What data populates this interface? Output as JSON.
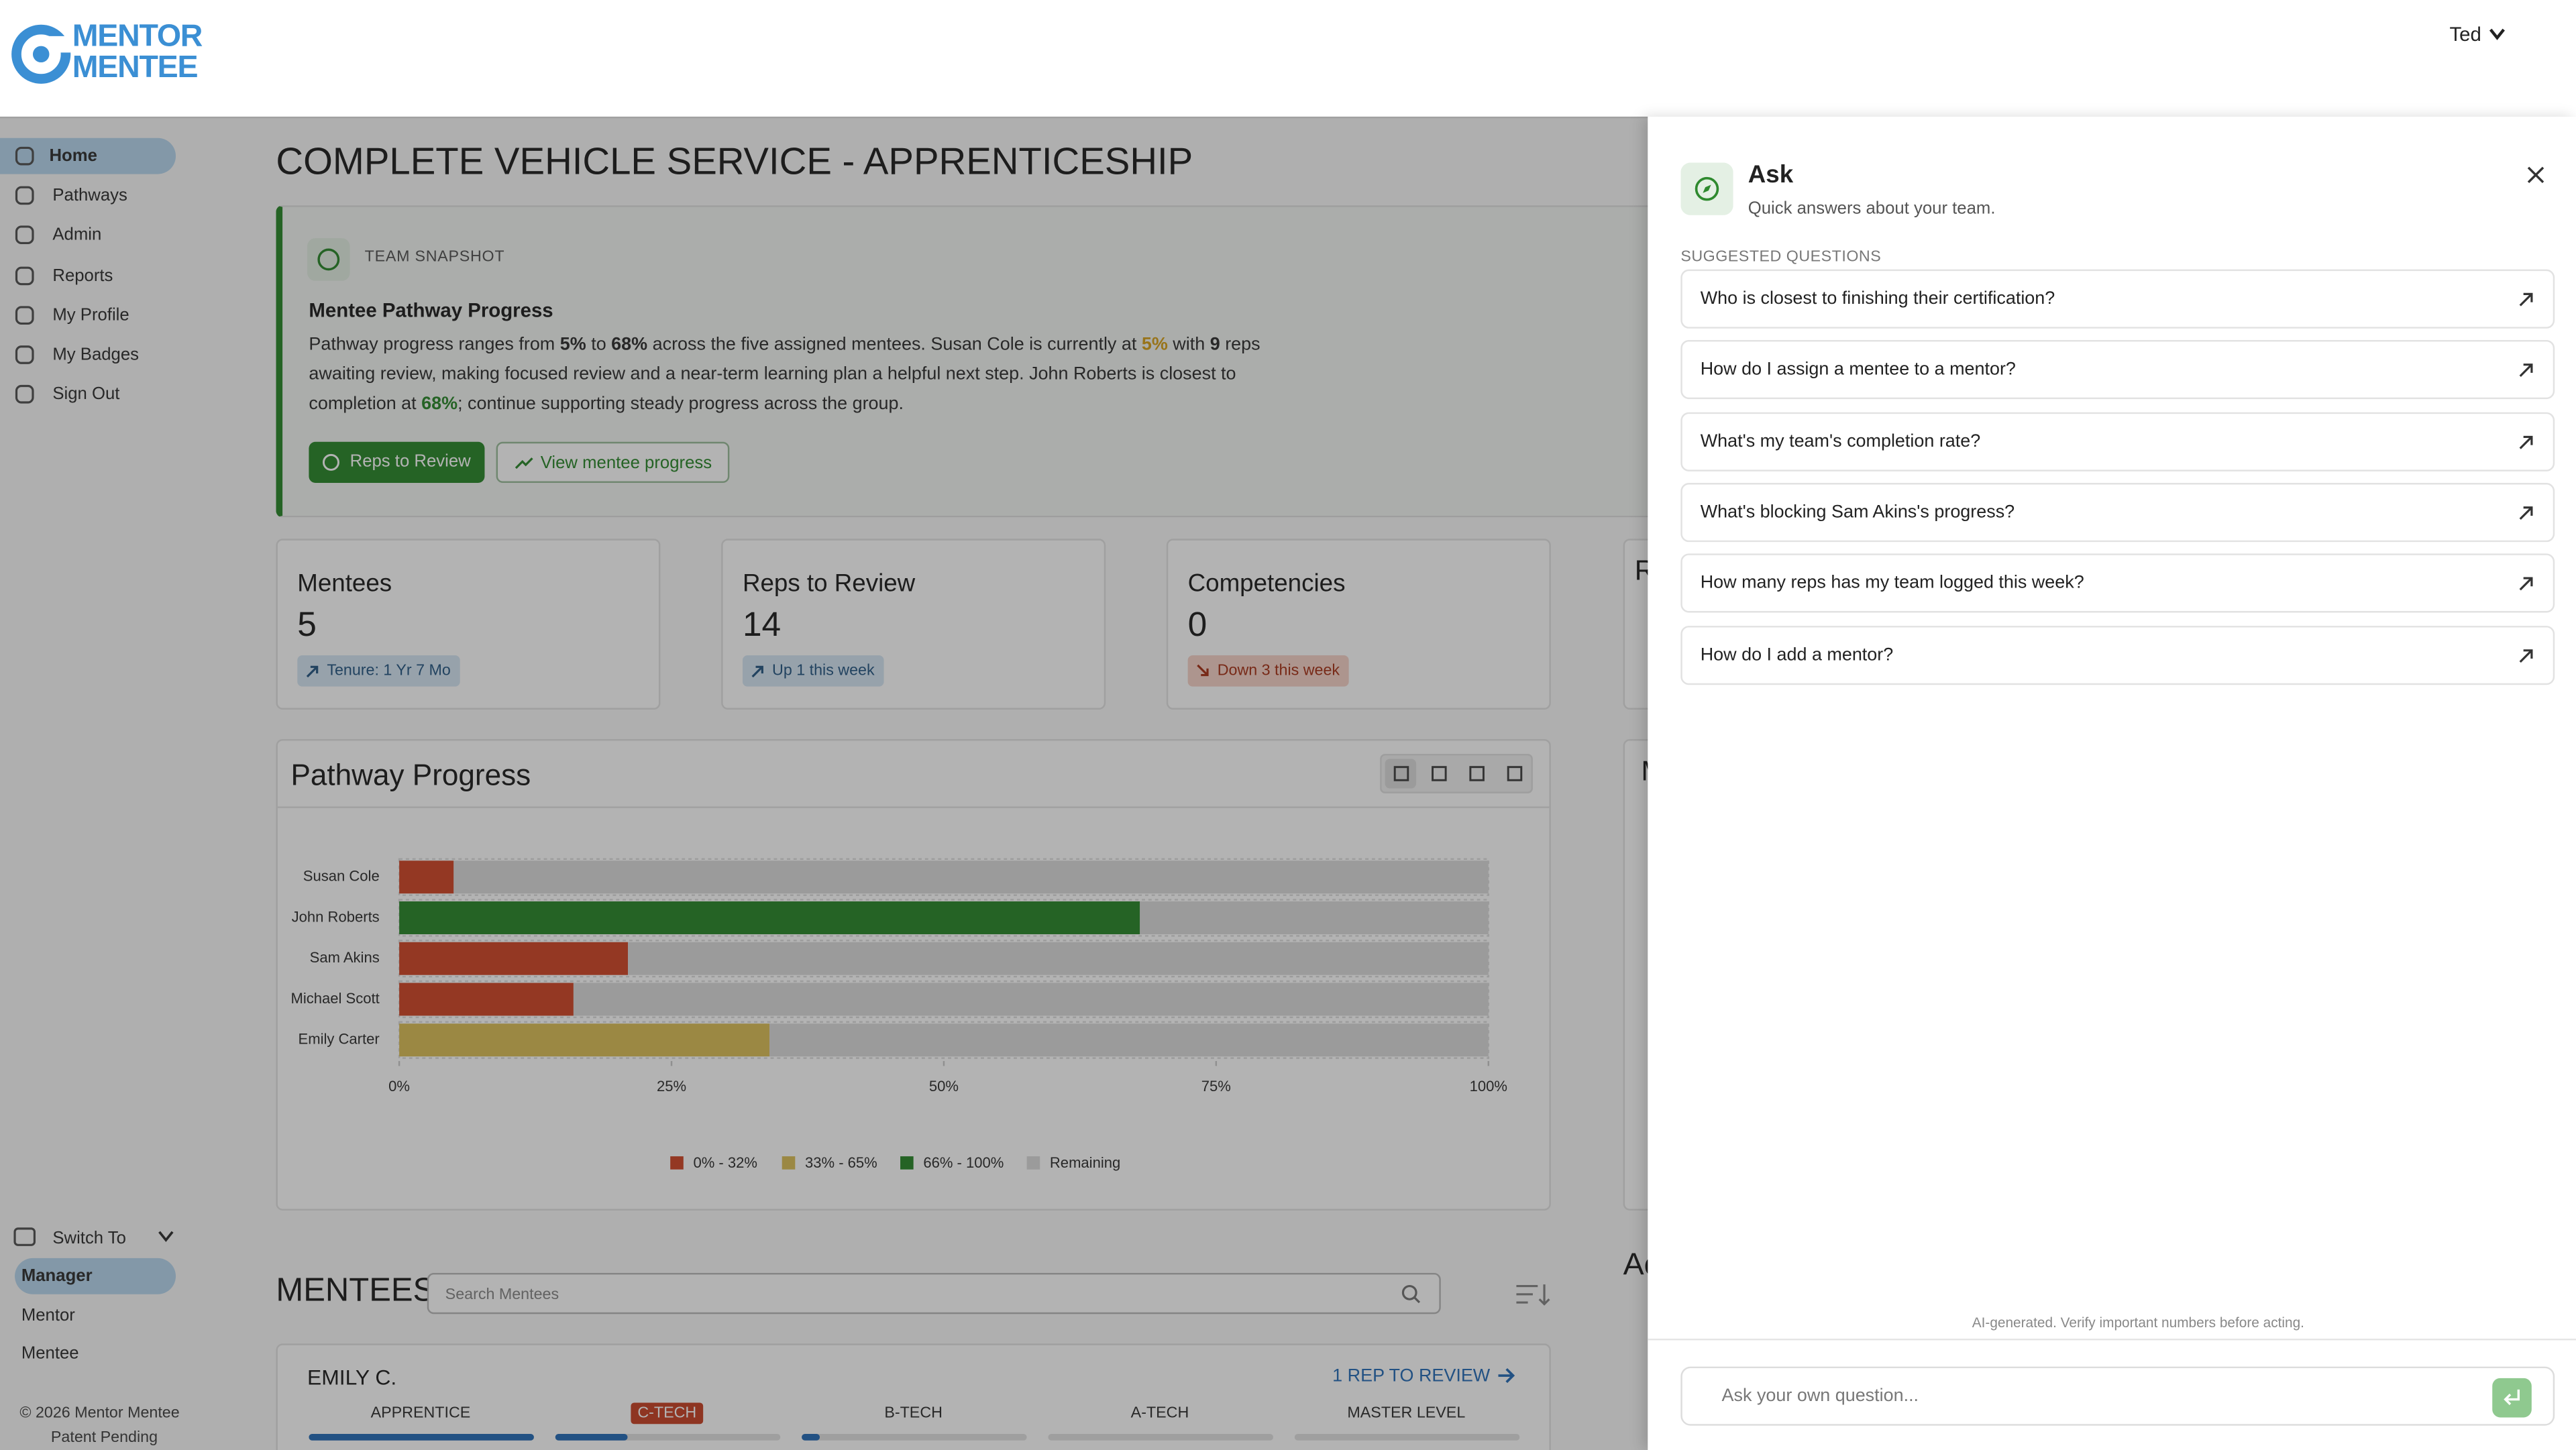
{
  "header": {
    "logo_line1": "MENTOR",
    "logo_line2": "MENTEE",
    "user": "Ted"
  },
  "sidebar": {
    "nav": [
      "Home",
      "Pathways",
      "Admin",
      "Reports",
      "My Profile",
      "My Badges",
      "Sign Out"
    ],
    "active": 0,
    "switch_to": "Switch To",
    "roles": [
      "Manager",
      "Mentor",
      "Mentee"
    ],
    "active_role": 0,
    "copyright": "© 2026 Mentor Mentee",
    "patent": "Patent Pending"
  },
  "main": {
    "title": "COMPLETE VEHICLE SERVICE - APPRENTICESHIP",
    "snapshot": {
      "label": "TEAM SNAPSHOT",
      "heading": "Mentee Pathway Progress",
      "text": [
        {
          "text": "Pathway progress ranges from ",
          "style": "plain"
        },
        {
          "text": "5%",
          "style": "bold"
        },
        {
          "text": " to ",
          "style": "plain"
        },
        {
          "text": "68%",
          "style": "bold"
        },
        {
          "text": " across the five assigned mentees. Susan Cole is currently at ",
          "style": "plain"
        },
        {
          "text": "5%",
          "style": "amber"
        },
        {
          "text": " with ",
          "style": "plain"
        },
        {
          "text": "9",
          "style": "bold"
        },
        {
          "text": " reps awaiting review, making focused review and a near-term learning plan a helpful next step. John Roberts is closest to completion at ",
          "style": "plain"
        },
        {
          "text": "68%",
          "style": "green"
        },
        {
          "text": "; continue supporting steady progress across the group.",
          "style": "plain"
        }
      ],
      "buttons": [
        "Reps to Review",
        "View mentee progress"
      ]
    },
    "stats": [
      {
        "label": "Mentees",
        "value": 5,
        "badge": "Tenure: 1 Yr 7 Mo",
        "tone": "blue"
      },
      {
        "label": "Reps to Review",
        "value": 14,
        "badge": "Up 1 this week",
        "tone": "blue"
      },
      {
        "label": "Competencies",
        "value": 0,
        "badge": "Down 3 this week",
        "tone": "red"
      }
    ],
    "cut_stat": "R",
    "cut_card": "M",
    "cut_section": "Ac"
  },
  "chart_data": {
    "type": "bar",
    "orientation": "horizontal",
    "stacked": true,
    "title": "Pathway Progress",
    "categories": [
      "Susan Cole",
      "John Roberts",
      "Sam Akins",
      "Michael Scott",
      "Emily Carter"
    ],
    "series": [
      {
        "values": [
          5,
          68,
          21,
          16,
          34
        ],
        "colors": [
          "#d24a2c",
          "#2f8a2f",
          "#d24a2c",
          "#d24a2c",
          "#dcc05a"
        ]
      },
      {
        "name": "Remaining",
        "color": "#dcdcdc",
        "values": [
          95,
          32,
          79,
          84,
          66
        ]
      }
    ],
    "legend_items": [
      {
        "label": "0% - 32%",
        "color": "#d24a2c"
      },
      {
        "label": "33% - 65%",
        "color": "#dcc05a"
      },
      {
        "label": "66% - 100%",
        "color": "#2f8a2f"
      },
      {
        "label": "Remaining",
        "color": "#dcdcdc"
      }
    ],
    "xlim": [
      0,
      100
    ],
    "xticks": [
      {
        "value": 0,
        "label": "0%"
      },
      {
        "value": 25,
        "label": "25%"
      },
      {
        "value": 50,
        "label": "50%"
      },
      {
        "value": 75,
        "label": "75%"
      },
      {
        "value": 100,
        "label": "100%"
      }
    ]
  },
  "mentees": {
    "title": "MENTEES",
    "search_placeholder": "Search Mentees",
    "card": {
      "name": "EMILY C.",
      "review": "1 REP TO REVIEW",
      "levels": [
        "APPRENTICE",
        "C-TECH",
        "B-TECH",
        "A-TECH",
        "MASTER LEVEL"
      ],
      "current": 1,
      "progress": [
        100,
        32,
        8,
        0,
        0
      ]
    }
  },
  "ask": {
    "title": "Ask",
    "subtitle": "Quick answers about your team.",
    "section": "SUGGESTED QUESTIONS",
    "questions": [
      "Who is closest to finishing their certification?",
      "How do I assign a mentee to a mentor?",
      "What's my team's completion rate?",
      "What's blocking Sam Akins's progress?",
      "How many reps has my team logged this week?",
      "How do I add a mentor?"
    ],
    "disclaimer": "AI-generated. Verify important numbers before acting.",
    "input_placeholder": "Ask your own question..."
  }
}
